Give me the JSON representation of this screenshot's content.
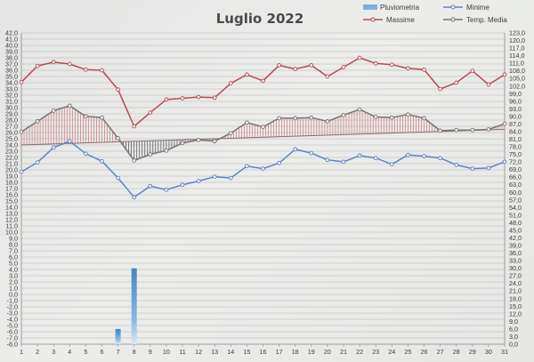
{
  "chart_data": {
    "type": "line",
    "title": "Luglio 2022",
    "xlabel": "",
    "ylabel": "",
    "categories": [
      1,
      2,
      3,
      4,
      5,
      6,
      7,
      8,
      9,
      10,
      11,
      12,
      13,
      14,
      15,
      16,
      17,
      18,
      19,
      20,
      21,
      22,
      23,
      24,
      25,
      26,
      27,
      28,
      29,
      30,
      31
    ],
    "ylim": [
      -8,
      42
    ],
    "y_ticks": [
      "42,0",
      "41,0",
      "40,0",
      "39,0",
      "38,0",
      "37,0",
      "36,0",
      "35,0",
      "34,0",
      "33,0",
      "32,0",
      "31,0",
      "30,0",
      "29,0",
      "28,0",
      "27,0",
      "26,0",
      "25,0",
      "24,0",
      "23,0",
      "22,0",
      "21,0",
      "20,0",
      "19,0",
      "18,0",
      "17,0",
      "16,0",
      "15,0",
      "14,0",
      "13,0",
      "12,0",
      "11,0",
      "10,0",
      "9,0",
      "8,0",
      "7,0",
      "6,0",
      "5,0",
      "4,0",
      "3,0",
      "2,0",
      "1,0",
      "0,0",
      "-1,0",
      "-2,0",
      "-3,0",
      "-4,0",
      "-5,0",
      "-6,0",
      "-7,0",
      "-8,0"
    ],
    "y2lim": [
      0,
      123
    ],
    "y2_ticks": [
      "123,0",
      "120,0",
      "117,0",
      "114,0",
      "111,0",
      "108,0",
      "105,0",
      "102,0",
      "99,0",
      "96,0",
      "93,0",
      "90,0",
      "87,0",
      "84,0",
      "81,0",
      "78,0",
      "75,0",
      "72,0",
      "69,0",
      "66,0",
      "63,0",
      "60,0",
      "57,0",
      "54,0",
      "51,0",
      "48,0",
      "45,0",
      "42,0",
      "39,0",
      "36,0",
      "33,0",
      "30,0",
      "27,0",
      "24,0",
      "21,0",
      "18,0",
      "15,0",
      "12,0",
      "9,0",
      "6,0",
      "3,0",
      "0,0"
    ],
    "grid": true,
    "legend_position": "top-right",
    "series": [
      {
        "name": "Pluviometria",
        "type": "bar",
        "axis": "right",
        "color": "#4f8fc4",
        "values": [
          0,
          0,
          0,
          0,
          0,
          0,
          6,
          30,
          0,
          0,
          0,
          0,
          0,
          0,
          0,
          0,
          0,
          0,
          0,
          0,
          0,
          0,
          0,
          0,
          0,
          0,
          0,
          0,
          0,
          0,
          0
        ]
      },
      {
        "name": "Minime",
        "type": "line",
        "color": "#5b85c2",
        "values": [
          19.7,
          21.2,
          23.6,
          24.6,
          22.6,
          21.4,
          18.7,
          15.6,
          17.4,
          16.8,
          17.6,
          18.2,
          18.9,
          18.7,
          20.6,
          20.2,
          21.1,
          23.3,
          22.7,
          21.6,
          21.3,
          22.3,
          21.9,
          20.9,
          22.4,
          22.2,
          21.9,
          20.8,
          20.2,
          20.3,
          21.3
        ]
      },
      {
        "name": "Massime",
        "type": "line",
        "color": "#b84a4f",
        "values": [
          34.1,
          36.7,
          37.3,
          37.0,
          36.1,
          36.0,
          32.9,
          27.0,
          29.2,
          31.3,
          31.5,
          31.7,
          31.6,
          33.9,
          35.3,
          34.3,
          36.8,
          36.2,
          36.8,
          35.0,
          36.5,
          38.0,
          37.1,
          36.9,
          36.3,
          36.1,
          33.0,
          34.0,
          35.9,
          33.7,
          35.3
        ]
      },
      {
        "name": "Temp. Media",
        "type": "line",
        "color": "#7a7373",
        "values": [
          26.1,
          27.8,
          29.5,
          30.3,
          28.6,
          28.4,
          25.1,
          21.5,
          22.5,
          23.1,
          24.3,
          24.8,
          24.6,
          25.9,
          27.6,
          26.9,
          28.3,
          28.3,
          28.4,
          27.8,
          28.8,
          29.7,
          28.5,
          28.4,
          28.9,
          28.3,
          26.3,
          26.4,
          26.4,
          26.5,
          27.4
        ]
      }
    ],
    "reference_line": {
      "name": "",
      "values": [
        24.0,
        26.5
      ]
    }
  }
}
